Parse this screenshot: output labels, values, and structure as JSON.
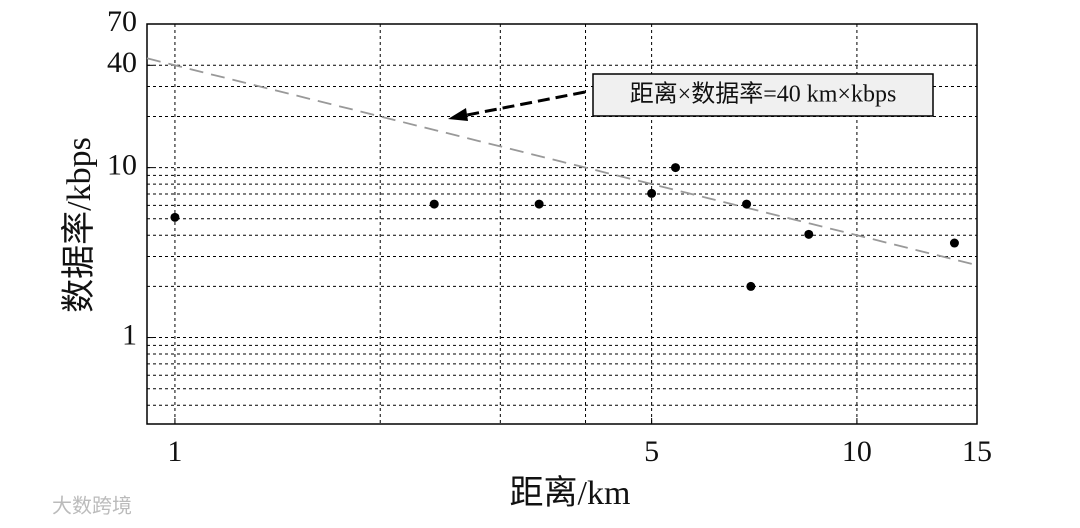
{
  "chart_data": {
    "type": "scatter",
    "x_label": "距离/km",
    "y_label": "数据率/kbps",
    "x": [
      1,
      2.4,
      3.42,
      5,
      5.42,
      6.89,
      6.99,
      8.5,
      13.9
    ],
    "values": [
      5.1,
      6.1,
      6.1,
      7.05,
      10,
      6.1,
      2,
      4.05,
      3.6
    ],
    "color": "#000000",
    "log_x": true,
    "log_y": true,
    "xlim": [
      0.91,
      15
    ],
    "ylim": [
      0.31,
      70
    ],
    "xticks": [
      1,
      5,
      10,
      15
    ],
    "yticks": [
      1,
      10,
      40,
      70
    ],
    "xgrid": [
      1,
      2,
      3,
      4,
      5,
      10
    ],
    "ygrid": [
      0.4,
      0.5,
      0.6,
      0.7,
      0.8,
      0.9,
      1,
      2,
      3,
      4,
      5,
      6,
      7,
      8,
      9,
      10,
      20,
      30,
      40
    ],
    "reference_line": {
      "label": "距离×数据率=40 km×kbps",
      "constant": 40,
      "color": "#999999"
    },
    "watermark": "大数跨境"
  }
}
